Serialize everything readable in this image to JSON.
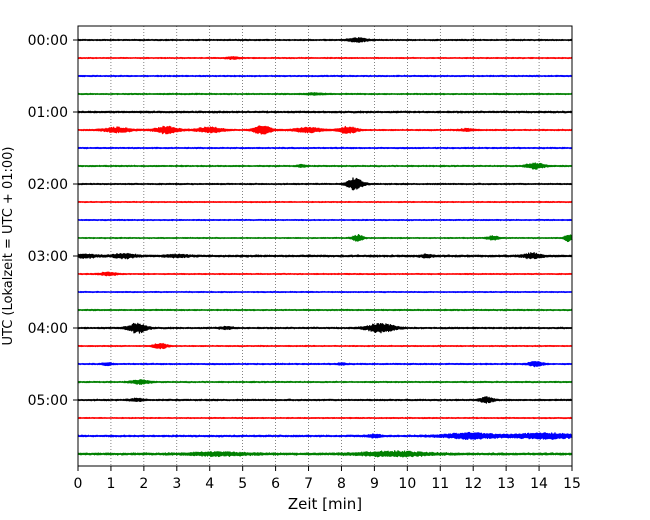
{
  "chart_data": {
    "type": "line",
    "title": "",
    "xlabel": "Zeit  [min]",
    "ylabel": "UTC (Lokalzeit = UTC + 01:00)",
    "xlim": [
      0,
      15
    ],
    "x_ticks": [
      0,
      1,
      2,
      3,
      4,
      5,
      6,
      7,
      8,
      9,
      10,
      11,
      12,
      13,
      14,
      15
    ],
    "y_tick_labels": [
      "00:00",
      "01:00",
      "02:00",
      "03:00",
      "04:00",
      "05:00"
    ],
    "trace_interval_min": 15,
    "grid_x": true,
    "color_cycle": [
      "#000000",
      "#ff0000",
      "#0000ff",
      "#008000"
    ],
    "traces": [
      {
        "label": "00:00",
        "noise": 0.3,
        "events": [
          {
            "t": 8.5,
            "amp": 1.3,
            "dur": 0.4
          }
        ]
      },
      {
        "label": "00:15",
        "noise": 0.25,
        "events": [
          {
            "t": 4.7,
            "amp": 0.6,
            "dur": 0.3
          }
        ]
      },
      {
        "label": "00:30",
        "noise": 0.3,
        "events": []
      },
      {
        "label": "00:45",
        "noise": 0.3,
        "events": [
          {
            "t": 7.2,
            "amp": 0.6,
            "dur": 0.4
          }
        ]
      },
      {
        "label": "01:00",
        "noise": 0.4,
        "events": []
      },
      {
        "label": "01:15",
        "noise": 0.3,
        "events": [
          {
            "t": 1.2,
            "amp": 1.6,
            "dur": 0.6
          },
          {
            "t": 2.7,
            "amp": 2.2,
            "dur": 0.5
          },
          {
            "t": 4.0,
            "amp": 1.6,
            "dur": 0.6
          },
          {
            "t": 5.6,
            "amp": 2.5,
            "dur": 0.4
          },
          {
            "t": 7.0,
            "amp": 1.5,
            "dur": 0.6
          },
          {
            "t": 8.2,
            "amp": 2.2,
            "dur": 0.4
          },
          {
            "t": 11.8,
            "amp": 0.8,
            "dur": 0.3
          }
        ]
      },
      {
        "label": "01:30",
        "noise": 0.3,
        "events": []
      },
      {
        "label": "01:45",
        "noise": 0.3,
        "events": [
          {
            "t": 13.9,
            "amp": 1.8,
            "dur": 0.4
          },
          {
            "t": 6.8,
            "amp": 0.7,
            "dur": 0.2
          }
        ]
      },
      {
        "label": "02:00",
        "noise": 0.3,
        "events": [
          {
            "t": 8.4,
            "amp": 3.5,
            "dur": 0.35
          }
        ]
      },
      {
        "label": "02:15",
        "noise": 0.25,
        "events": []
      },
      {
        "label": "02:30",
        "noise": 0.25,
        "events": []
      },
      {
        "label": "02:45",
        "noise": 0.25,
        "events": [
          {
            "t": 8.5,
            "amp": 1.8,
            "dur": 0.25
          },
          {
            "t": 12.6,
            "amp": 1.2,
            "dur": 0.25
          },
          {
            "t": 14.9,
            "amp": 2.0,
            "dur": 0.2
          }
        ]
      },
      {
        "label": "03:00",
        "noise": 0.45,
        "events": [
          {
            "t": 0.2,
            "amp": 1.1,
            "dur": 0.5
          },
          {
            "t": 1.4,
            "amp": 1.4,
            "dur": 0.5
          },
          {
            "t": 3.0,
            "amp": 0.8,
            "dur": 0.5
          },
          {
            "t": 10.6,
            "amp": 0.8,
            "dur": 0.3
          },
          {
            "t": 13.8,
            "amp": 1.6,
            "dur": 0.4
          }
        ]
      },
      {
        "label": "03:15",
        "noise": 0.25,
        "events": [
          {
            "t": 0.9,
            "amp": 0.9,
            "dur": 0.4
          }
        ]
      },
      {
        "label": "03:30",
        "noise": 0.25,
        "events": []
      },
      {
        "label": "03:45",
        "noise": 0.3,
        "events": []
      },
      {
        "label": "04:00",
        "noise": 0.35,
        "events": [
          {
            "t": 1.8,
            "amp": 3.0,
            "dur": 0.4
          },
          {
            "t": 9.2,
            "amp": 2.8,
            "dur": 0.6
          },
          {
            "t": 4.5,
            "amp": 0.7,
            "dur": 0.3
          }
        ]
      },
      {
        "label": "04:15",
        "noise": 0.25,
        "events": [
          {
            "t": 2.5,
            "amp": 1.8,
            "dur": 0.3
          }
        ]
      },
      {
        "label": "04:30",
        "noise": 0.3,
        "events": [
          {
            "t": 13.9,
            "amp": 1.7,
            "dur": 0.3
          },
          {
            "t": 0.9,
            "amp": 0.8,
            "dur": 0.2
          },
          {
            "t": 8.0,
            "amp": 0.6,
            "dur": 0.2
          }
        ]
      },
      {
        "label": "04:45",
        "noise": 0.3,
        "events": [
          {
            "t": 1.9,
            "amp": 1.2,
            "dur": 0.4
          }
        ]
      },
      {
        "label": "05:00",
        "noise": 0.35,
        "events": [
          {
            "t": 12.4,
            "amp": 1.6,
            "dur": 0.3
          },
          {
            "t": 1.8,
            "amp": 0.8,
            "dur": 0.3
          }
        ]
      },
      {
        "label": "05:15",
        "noise": 0.25,
        "events": []
      },
      {
        "label": "05:30",
        "noise": 0.4,
        "events": [
          {
            "t": 11.9,
            "amp": 1.8,
            "dur": 1.2
          },
          {
            "t": 14.2,
            "amp": 1.8,
            "dur": 1.4
          },
          {
            "t": 9.0,
            "amp": 0.9,
            "dur": 0.3
          }
        ]
      },
      {
        "label": "05:45",
        "noise": 0.5,
        "events": [
          {
            "t": 4.3,
            "amp": 1.0,
            "dur": 1.4
          },
          {
            "t": 9.6,
            "amp": 1.4,
            "dur": 1.6
          }
        ]
      }
    ]
  }
}
